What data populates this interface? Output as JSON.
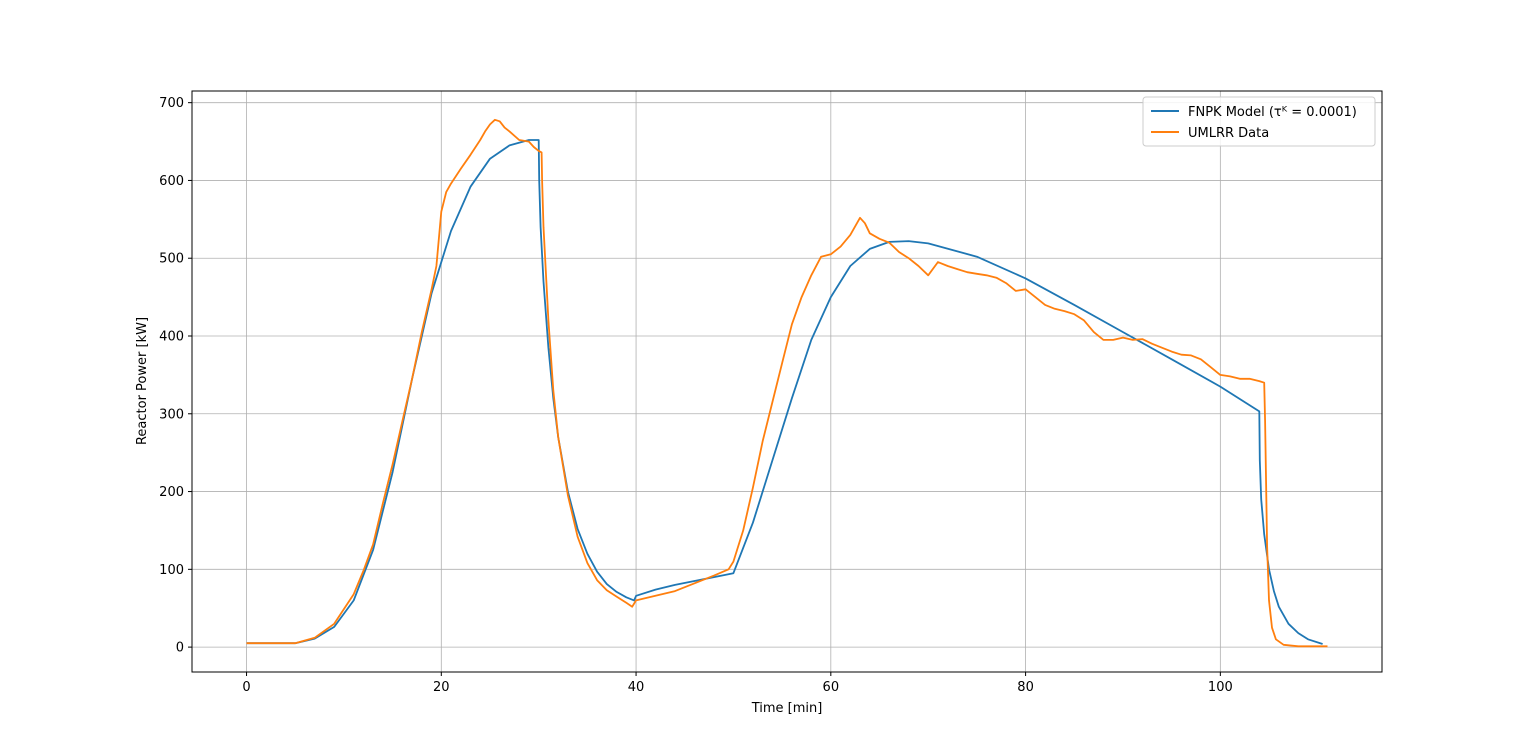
{
  "chart_data": {
    "type": "line",
    "xlabel": "Time [min]",
    "ylabel": "Reactor Power [kW]",
    "xlim": [
      -5.6,
      116.6
    ],
    "ylim": [
      -32,
      715
    ],
    "xticks": [
      0,
      20,
      40,
      60,
      80,
      100
    ],
    "yticks": [
      0,
      100,
      200,
      300,
      400,
      500,
      600,
      700
    ],
    "grid": true,
    "legend_position": "top-right",
    "series": [
      {
        "name": "FNPK Model (τᴷ = 0.0001)",
        "color": "#1f77b4",
        "points": [
          [
            0,
            5
          ],
          [
            5,
            5
          ],
          [
            7,
            11
          ],
          [
            9,
            26
          ],
          [
            11,
            60
          ],
          [
            13,
            125
          ],
          [
            15,
            225
          ],
          [
            17,
            345
          ],
          [
            19,
            455
          ],
          [
            21,
            535
          ],
          [
            23,
            592
          ],
          [
            25,
            628
          ],
          [
            27,
            645
          ],
          [
            29,
            652
          ],
          [
            30,
            652
          ],
          [
            30.05,
            600
          ],
          [
            30.2,
            540
          ],
          [
            30.5,
            470
          ],
          [
            31,
            385
          ],
          [
            31.5,
            320
          ],
          [
            32,
            270
          ],
          [
            33,
            200
          ],
          [
            34,
            152
          ],
          [
            35,
            120
          ],
          [
            36,
            97
          ],
          [
            37,
            81
          ],
          [
            38,
            71
          ],
          [
            39,
            64
          ],
          [
            39.8,
            60
          ],
          [
            40,
            66
          ],
          [
            42,
            74
          ],
          [
            44,
            80
          ],
          [
            46,
            85
          ],
          [
            48,
            90
          ],
          [
            50,
            95
          ],
          [
            52,
            160
          ],
          [
            54,
            240
          ],
          [
            56,
            320
          ],
          [
            58,
            395
          ],
          [
            60,
            450
          ],
          [
            62,
            490
          ],
          [
            64,
            512
          ],
          [
            66,
            521
          ],
          [
            68,
            522
          ],
          [
            70,
            519
          ],
          [
            75,
            502
          ],
          [
            80,
            474
          ],
          [
            85,
            440
          ],
          [
            90,
            405
          ],
          [
            95,
            370
          ],
          [
            100,
            335
          ],
          [
            104,
            303
          ],
          [
            104.05,
            240
          ],
          [
            104.2,
            190
          ],
          [
            104.5,
            145
          ],
          [
            105,
            100
          ],
          [
            105.5,
            72
          ],
          [
            106,
            52
          ],
          [
            107,
            30
          ],
          [
            108,
            18
          ],
          [
            109,
            10
          ],
          [
            110.5,
            4
          ]
        ]
      },
      {
        "name": "UMLRR Data",
        "color": "#ff7f0e",
        "points": [
          [
            0,
            5
          ],
          [
            5,
            5
          ],
          [
            7,
            12
          ],
          [
            9,
            30
          ],
          [
            11,
            68
          ],
          [
            12,
            98
          ],
          [
            13,
            132
          ],
          [
            14,
            185
          ],
          [
            15,
            235
          ],
          [
            16,
            290
          ],
          [
            17,
            345
          ],
          [
            18,
            405
          ],
          [
            19,
            460
          ],
          [
            19.5,
            490
          ],
          [
            20,
            560
          ],
          [
            20.5,
            585
          ],
          [
            21,
            596
          ],
          [
            22,
            615
          ],
          [
            23,
            633
          ],
          [
            24,
            652
          ],
          [
            24.5,
            663
          ],
          [
            25,
            672
          ],
          [
            25.5,
            678
          ],
          [
            26,
            676
          ],
          [
            26.5,
            668
          ],
          [
            27,
            663
          ],
          [
            28,
            652
          ],
          [
            29,
            650
          ],
          [
            29.5,
            643
          ],
          [
            30,
            638
          ],
          [
            30.3,
            636
          ],
          [
            30.35,
            600
          ],
          [
            30.5,
            540
          ],
          [
            31,
            420
          ],
          [
            31.5,
            330
          ],
          [
            32,
            270
          ],
          [
            33,
            195
          ],
          [
            34,
            142
          ],
          [
            35,
            108
          ],
          [
            36,
            86
          ],
          [
            37,
            73
          ],
          [
            38,
            65
          ],
          [
            39,
            57
          ],
          [
            39.6,
            52
          ],
          [
            40,
            60
          ],
          [
            42,
            66
          ],
          [
            44,
            72
          ],
          [
            46,
            82
          ],
          [
            48,
            92
          ],
          [
            49.5,
            100
          ],
          [
            50,
            110
          ],
          [
            51,
            150
          ],
          [
            52,
            205
          ],
          [
            53,
            265
          ],
          [
            54,
            315
          ],
          [
            55,
            365
          ],
          [
            56,
            415
          ],
          [
            57,
            450
          ],
          [
            58,
            478
          ],
          [
            59,
            502
          ],
          [
            60,
            505
          ],
          [
            61,
            515
          ],
          [
            62,
            530
          ],
          [
            63,
            552
          ],
          [
            63.5,
            545
          ],
          [
            64,
            532
          ],
          [
            65,
            525
          ],
          [
            66,
            520
          ],
          [
            67,
            508
          ],
          [
            68,
            500
          ],
          [
            69,
            490
          ],
          [
            70,
            478
          ],
          [
            71,
            495
          ],
          [
            72,
            490
          ],
          [
            73,
            486
          ],
          [
            74,
            482
          ],
          [
            75,
            480
          ],
          [
            76,
            478
          ],
          [
            77,
            475
          ],
          [
            78,
            468
          ],
          [
            79,
            458
          ],
          [
            80,
            460
          ],
          [
            81,
            450
          ],
          [
            82,
            440
          ],
          [
            83,
            435
          ],
          [
            84,
            432
          ],
          [
            85,
            428
          ],
          [
            86,
            420
          ],
          [
            87,
            405
          ],
          [
            88,
            395
          ],
          [
            89,
            395
          ],
          [
            90,
            398
          ],
          [
            91,
            395
          ],
          [
            92,
            396
          ],
          [
            93,
            390
          ],
          [
            94,
            385
          ],
          [
            95,
            380
          ],
          [
            96,
            376
          ],
          [
            97,
            375
          ],
          [
            98,
            370
          ],
          [
            99,
            360
          ],
          [
            100,
            350
          ],
          [
            101,
            348
          ],
          [
            102,
            345
          ],
          [
            103,
            345
          ],
          [
            104,
            342
          ],
          [
            104.5,
            340
          ],
          [
            104.6,
            290
          ],
          [
            104.7,
            210
          ],
          [
            104.8,
            130
          ],
          [
            105,
            60
          ],
          [
            105.3,
            25
          ],
          [
            105.7,
            10
          ],
          [
            106.5,
            3
          ],
          [
            108,
            1
          ],
          [
            111,
            1
          ]
        ]
      }
    ]
  }
}
